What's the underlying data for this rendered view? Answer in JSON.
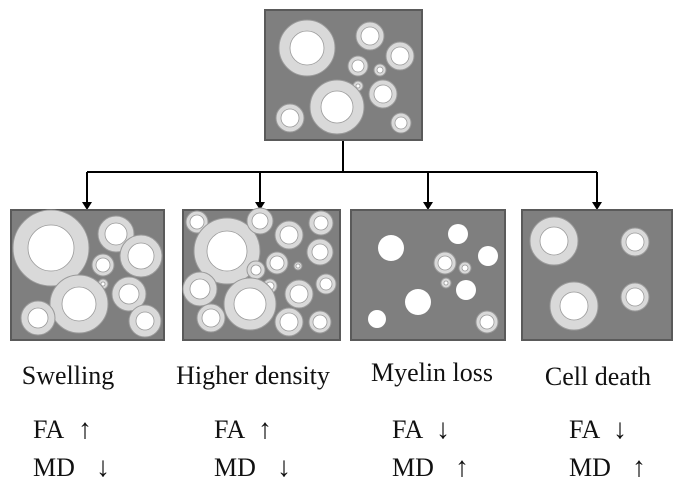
{
  "colors": {
    "box_fill": "#7f7f7f",
    "box_stroke": "#5a5a5a",
    "myelin": "#d9d9d9",
    "axon": "#ffffff",
    "ring_stroke": "#9a9a9a",
    "arrow": "#000000",
    "text": "#111111"
  },
  "parent": {
    "name": "normal-tissue"
  },
  "children": [
    {
      "id": "swelling",
      "title": "Swelling",
      "fa": "FA",
      "fa_arrow": "↑",
      "md": "MD",
      "md_arrow": "↓"
    },
    {
      "id": "higher-density",
      "title": "Higher density",
      "fa": "FA",
      "fa_arrow": "↑",
      "md": "MD",
      "md_arrow": "↓"
    },
    {
      "id": "myelin-loss",
      "title": "Myelin loss",
      "fa": "FA",
      "fa_arrow": "↓",
      "md": "MD",
      "md_arrow": "↑"
    },
    {
      "id": "cell-death",
      "title": "Cell death",
      "fa": "FA",
      "fa_arrow": "↓",
      "md": "MD",
      "md_arrow": "↑"
    }
  ]
}
